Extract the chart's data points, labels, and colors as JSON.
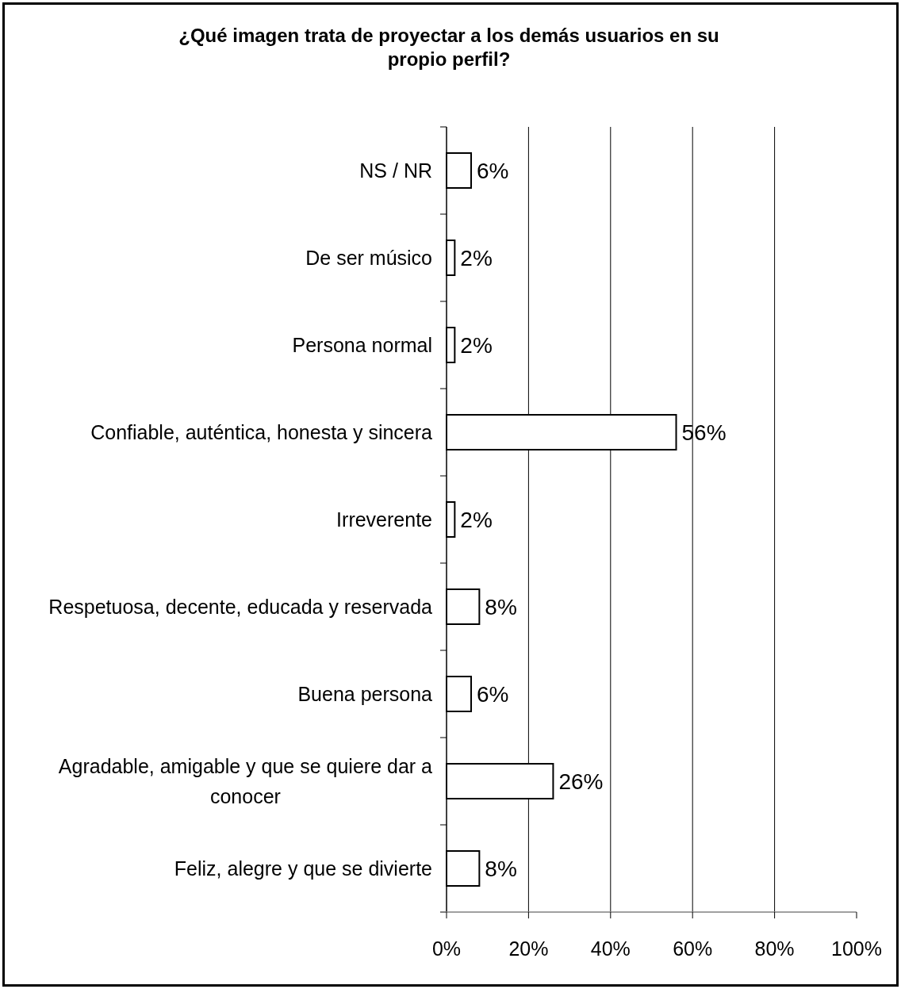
{
  "chart_data": {
    "type": "bar",
    "orientation": "horizontal",
    "title": "¿Qué imagen trata de proyectar a los demás usuarios en su propio perfil?",
    "categories": [
      "NS / NR",
      "De ser músico",
      "Persona normal",
      "Confiable, auténtica, honesta y sincera",
      "Irreverente",
      "Respetuosa, decente, educada y reservada",
      "Buena persona",
      "Agradable, amigable y que se quiere dar a conocer",
      "Feliz, alegre y que se divierte"
    ],
    "values": [
      6,
      2,
      2,
      56,
      2,
      8,
      6,
      26,
      8
    ],
    "color": "#ffffff",
    "value_labels": [
      "6%",
      "2%",
      "2%",
      "56%",
      "2%",
      "8%",
      "6%",
      "26%",
      "8%"
    ],
    "xlim": [
      0,
      100
    ],
    "xticks": [
      {
        "value": 0,
        "label": "0%"
      },
      {
        "value": 20,
        "label": "20%"
      },
      {
        "value": 40,
        "label": "40%"
      },
      {
        "value": 60,
        "label": "60%"
      },
      {
        "value": 80,
        "label": "80%"
      },
      {
        "value": 100,
        "label": "100%"
      }
    ],
    "grid": "x"
  }
}
